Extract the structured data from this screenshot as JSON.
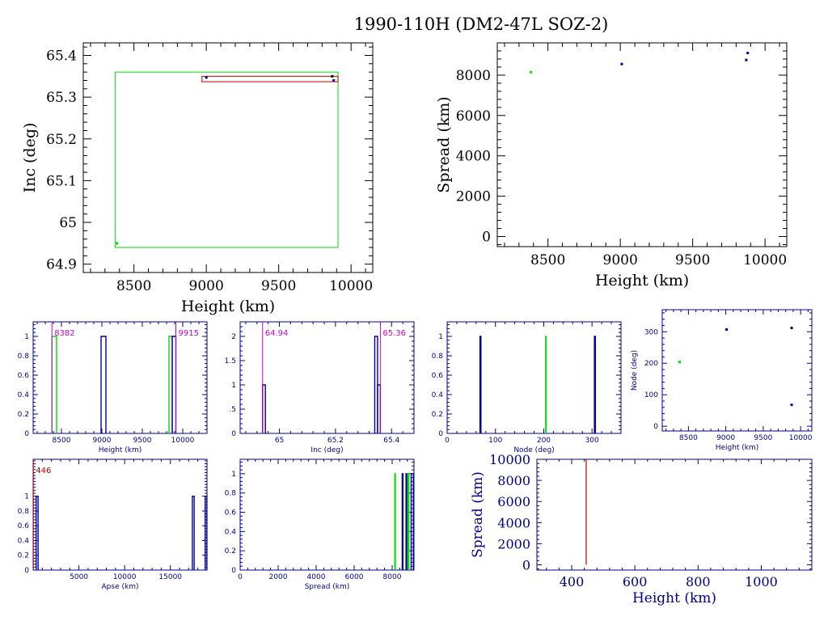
{
  "title": "1990-110H (DM2-47L SOZ-2)",
  "colors": {
    "green": "#00dd00",
    "blue": "#0000a0",
    "red": "#b00000",
    "magenta": "#cc00cc",
    "black": "#000000",
    "navy": "#00008b"
  },
  "chart_data": [
    {
      "id": "inc-vs-height",
      "type": "scatter",
      "xlabel": "Height (km)",
      "ylabel": "Inc (deg)",
      "xlim": [
        8150,
        10150
      ],
      "ylim": [
        64.88,
        65.43
      ],
      "xticks": [
        8500,
        9000,
        9500,
        10000
      ],
      "yticks": [
        64.9,
        65,
        65.1,
        65.2,
        65.3,
        65.4
      ],
      "ytick_labels": [
        "64.9",
        "65",
        "65.1",
        "65.2",
        "65.3",
        "65.4"
      ],
      "boxes": [
        {
          "color": "green",
          "x": [
            8370,
            9910
          ],
          "y": [
            64.94,
            65.36
          ]
        },
        {
          "color": "red",
          "x": [
            8970,
            9910
          ],
          "y": [
            65.337,
            65.35
          ]
        }
      ],
      "points": [
        {
          "x": 8382,
          "y": 64.95,
          "color": "green"
        },
        {
          "x": 9000,
          "y": 65.347,
          "color": "blue"
        },
        {
          "x": 9870,
          "y": 65.35,
          "color": "black"
        },
        {
          "x": 9880,
          "y": 65.34,
          "color": "blue"
        }
      ]
    },
    {
      "id": "spread-vs-height",
      "type": "scatter",
      "xlabel": "Height (km)",
      "ylabel": "Spread (km)",
      "xlim": [
        8150,
        10150
      ],
      "ylim": [
        -500,
        9600
      ],
      "xticks": [
        8500,
        9000,
        9500,
        10000
      ],
      "yticks": [
        0,
        2000,
        4000,
        6000,
        8000
      ],
      "points": [
        {
          "x": 8382,
          "y": 8150,
          "color": "green"
        },
        {
          "x": 9010,
          "y": 8550,
          "color": "blue"
        },
        {
          "x": 9870,
          "y": 8750,
          "color": "blue"
        },
        {
          "x": 9880,
          "y": 9100,
          "color": "blue"
        }
      ]
    },
    {
      "id": "height-hist",
      "type": "bar",
      "xlabel": "Height (km)",
      "xlim": [
        8150,
        10300
      ],
      "ylim": [
        0,
        1.15
      ],
      "xticks": [
        8500,
        9000,
        9500,
        10000
      ],
      "yticks": [
        0,
        0.2,
        0.4,
        0.6,
        0.8,
        1
      ],
      "ytick_labels": [
        "0",
        "0.2",
        "0.4",
        "0.6",
        "0.8",
        "1"
      ],
      "bars": [
        {
          "x0": 8382,
          "x1": 8440,
          "h": 1,
          "color": "green"
        },
        {
          "x0": 8990,
          "x1": 9050,
          "h": 1,
          "color": "blue"
        },
        {
          "x0": 9830,
          "x1": 9870,
          "h": 1,
          "color": "green"
        },
        {
          "x0": 9870,
          "x1": 9915,
          "h": 1,
          "color": "blue"
        }
      ],
      "markers": [
        {
          "x": 8382,
          "label": "8382",
          "color": "magenta",
          "anchor": "left"
        },
        {
          "x": 9915,
          "label": "9915",
          "color": "magenta",
          "anchor": "left"
        }
      ]
    },
    {
      "id": "inc-hist",
      "type": "bar",
      "xlabel": "Inc (deg)",
      "xlim": [
        64.86,
        65.48
      ],
      "ylim": [
        0,
        2.3
      ],
      "xticks": [
        65,
        65.2,
        65.4
      ],
      "xtick_labels": [
        "65",
        "65.2",
        "65.4"
      ],
      "yticks": [
        0,
        0.5,
        1,
        1.5,
        2
      ],
      "ytick_labels": [
        "0",
        ".5",
        "1",
        "1.5",
        "2"
      ],
      "bars": [
        {
          "x0": 64.94,
          "x1": 64.95,
          "h": 1,
          "color": "blue"
        },
        {
          "x0": 65.34,
          "x1": 65.35,
          "h": 2,
          "color": "blue"
        },
        {
          "x0": 65.35,
          "x1": 65.36,
          "h": 1,
          "color": "blue"
        }
      ],
      "markers": [
        {
          "x": 64.94,
          "label": "64.94",
          "color": "magenta",
          "anchor": "left"
        },
        {
          "x": 65.36,
          "label": "65.36",
          "color": "magenta",
          "anchor": "left"
        }
      ]
    },
    {
      "id": "node-hist",
      "type": "bar",
      "xlabel": "Node (deg)",
      "xlim": [
        0,
        360
      ],
      "ylim": [
        0,
        1.15
      ],
      "xticks": [
        0,
        100,
        200,
        300
      ],
      "yticks": [
        0,
        0.2,
        0.4,
        0.6,
        0.8,
        1
      ],
      "ytick_labels": [
        "0",
        "0.2",
        "0.4",
        "0.6",
        "0.8",
        "1"
      ],
      "bars": [
        {
          "x0": 68,
          "x1": 70,
          "h": 1,
          "color": "blue"
        },
        {
          "x0": 204,
          "x1": 205,
          "h": 1,
          "color": "green"
        },
        {
          "x0": 305,
          "x1": 307,
          "h": 1,
          "color": "blue"
        }
      ]
    },
    {
      "id": "node-vs-height",
      "type": "scatter",
      "xlabel": "Height (km)",
      "ylabel": "Node (deg)",
      "xlim": [
        8150,
        10150
      ],
      "ylim": [
        -15,
        370
      ],
      "xticks": [
        8500,
        9000,
        9500,
        10000
      ],
      "yticks": [
        0,
        100,
        200,
        300
      ],
      "points": [
        {
          "x": 8382,
          "y": 204,
          "color": "green"
        },
        {
          "x": 9010,
          "y": 307,
          "color": "blue"
        },
        {
          "x": 9880,
          "y": 312,
          "color": "black"
        },
        {
          "x": 9880,
          "y": 68,
          "color": "blue"
        }
      ]
    },
    {
      "id": "apse-hist",
      "type": "bar",
      "xlabel": "Apse (km)",
      "xlim": [
        0,
        19000
      ],
      "ylim": [
        0,
        1.5
      ],
      "xticks": [
        5000,
        10000,
        15000
      ],
      "yticks": [
        0,
        0.2,
        0.4,
        0.6,
        0.8,
        1
      ],
      "ytick_labels": [
        "0",
        "0.2",
        "0.4",
        "0.6",
        "0.8",
        "1"
      ],
      "bars": [
        {
          "x0": 330,
          "x1": 540,
          "h": 1,
          "color": "blue"
        },
        {
          "x0": 17400,
          "x1": 17600,
          "h": 1,
          "color": "blue"
        },
        {
          "x0": 18800,
          "x1": 18990,
          "h": 1,
          "color": "blue"
        }
      ],
      "markers": [
        {
          "x": 20,
          "label": "446",
          "color": "red",
          "anchor": "left"
        }
      ]
    },
    {
      "id": "spread-hist",
      "type": "bar",
      "xlabel": "Spread (km)",
      "xlim": [
        0,
        9150
      ],
      "ylim": [
        0,
        1.15
      ],
      "xticks": [
        0,
        2000,
        4000,
        6000,
        8000
      ],
      "yticks": [
        0,
        0.2,
        0.4,
        0.6,
        0.8,
        1
      ],
      "ytick_labels": [
        "0",
        "0.2",
        "0.4",
        "0.6",
        "0.8",
        "1"
      ],
      "bars": [
        {
          "x0": 8140,
          "x1": 8170,
          "h": 1,
          "color": "green"
        },
        {
          "x0": 8530,
          "x1": 8570,
          "h": 1,
          "color": "blue"
        },
        {
          "x0": 8730,
          "x1": 8770,
          "h": 1,
          "color": "blue"
        },
        {
          "x0": 8830,
          "x1": 8880,
          "h": 1,
          "color": "green"
        },
        {
          "x0": 9000,
          "x1": 9120,
          "h": 1,
          "color": "blue"
        }
      ]
    },
    {
      "id": "spread-vs-perigee",
      "type": "line",
      "xlabel": "Height (km)",
      "ylabel": "Spread (km)",
      "xlim": [
        290,
        1160
      ],
      "ylim": [
        -500,
        10000
      ],
      "xticks": [
        400,
        600,
        800,
        1000
      ],
      "yticks": [
        0,
        2000,
        4000,
        6000,
        8000,
        10000
      ],
      "lines": [
        {
          "x": [
            446,
            446
          ],
          "y": [
            0,
            10000
          ],
          "color": "red"
        }
      ]
    }
  ]
}
